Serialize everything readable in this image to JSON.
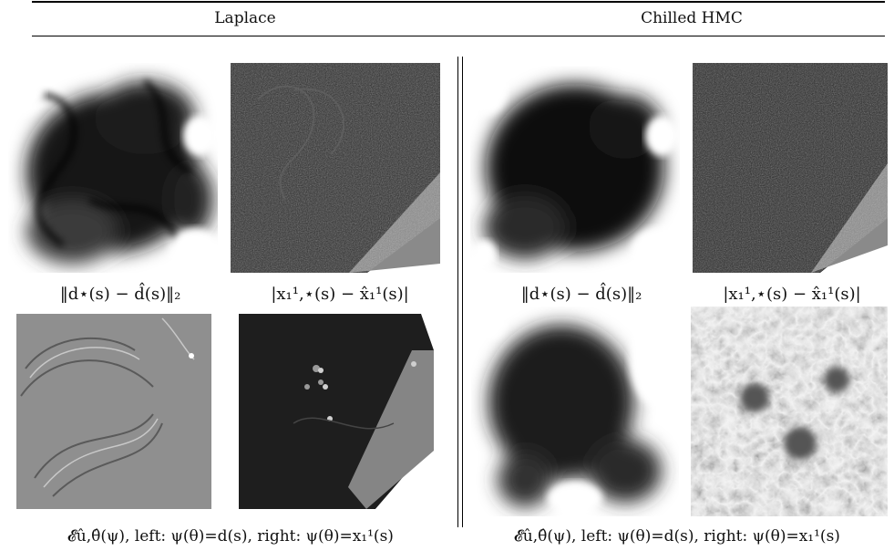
{
  "header": {
    "left_title": "Laplace",
    "right_title": "Chilled HMC"
  },
  "captions": {
    "laplace_upper_left": "‖d⋆(s) − d̂(s)‖₂",
    "laplace_upper_right": "|x₁¹,⋆(s) − x̂₁¹(s)|",
    "hmc_upper_left": "‖d⋆(s) − d̂(s)‖₂",
    "hmc_upper_right": "|x₁¹,⋆(s) − x̂₁¹(s)|",
    "laplace_lower": "𝓔û,θ̂(ψ), left: ψ(θ)=d(s), right: ψ(θ)=x₁¹(s)",
    "hmc_lower": "𝓔û,θ̂(ψ), left: ψ(θ)=d(s), right: ψ(θ)=x₁¹(s)"
  }
}
